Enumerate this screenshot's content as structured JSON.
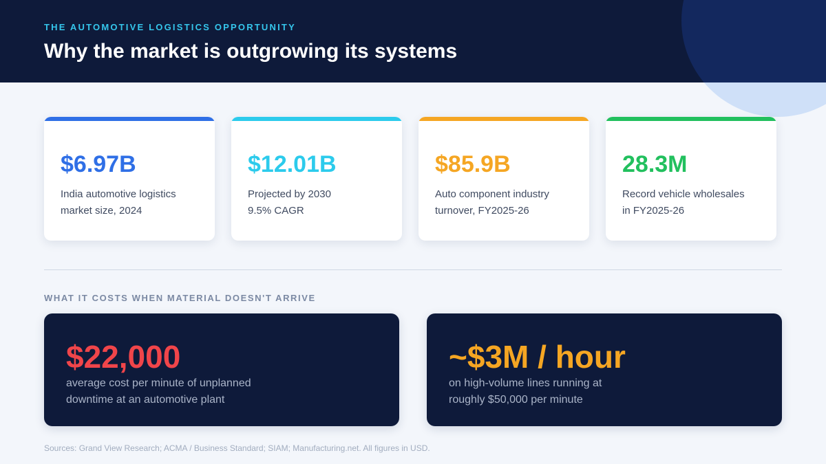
{
  "header": {
    "kicker": "THE AUTOMOTIVE LOGISTICS OPPORTUNITY",
    "title": "Why the market is outgrowing its systems"
  },
  "stats": [
    {
      "value": "$6.97B",
      "lines": [
        "India automotive logistics",
        "market size, 2024"
      ]
    },
    {
      "value": "$12.01B",
      "lines": [
        "Projected by 2030",
        "9.5% CAGR"
      ]
    },
    {
      "value": "$85.9B",
      "lines": [
        "Auto component industry",
        "turnover, FY2025-26"
      ]
    },
    {
      "value": "28.3M",
      "lines": [
        "Record vehicle wholesales",
        "in FY2025-26"
      ]
    }
  ],
  "section_label": "WHAT IT COSTS WHEN MATERIAL DOESN'T ARRIVE",
  "costs": [
    {
      "value": "$22,000",
      "lines": [
        "average cost per minute of unplanned",
        "downtime at an automotive plant"
      ]
    },
    {
      "value": "~$3M / hour",
      "lines": [
        "on high-volume lines running at",
        "roughly $50,000 per minute"
      ]
    }
  ],
  "sources": "Sources: Grand View Research; ACMA / Business Standard; SIAM; Manufacturing.net. All figures in USD."
}
